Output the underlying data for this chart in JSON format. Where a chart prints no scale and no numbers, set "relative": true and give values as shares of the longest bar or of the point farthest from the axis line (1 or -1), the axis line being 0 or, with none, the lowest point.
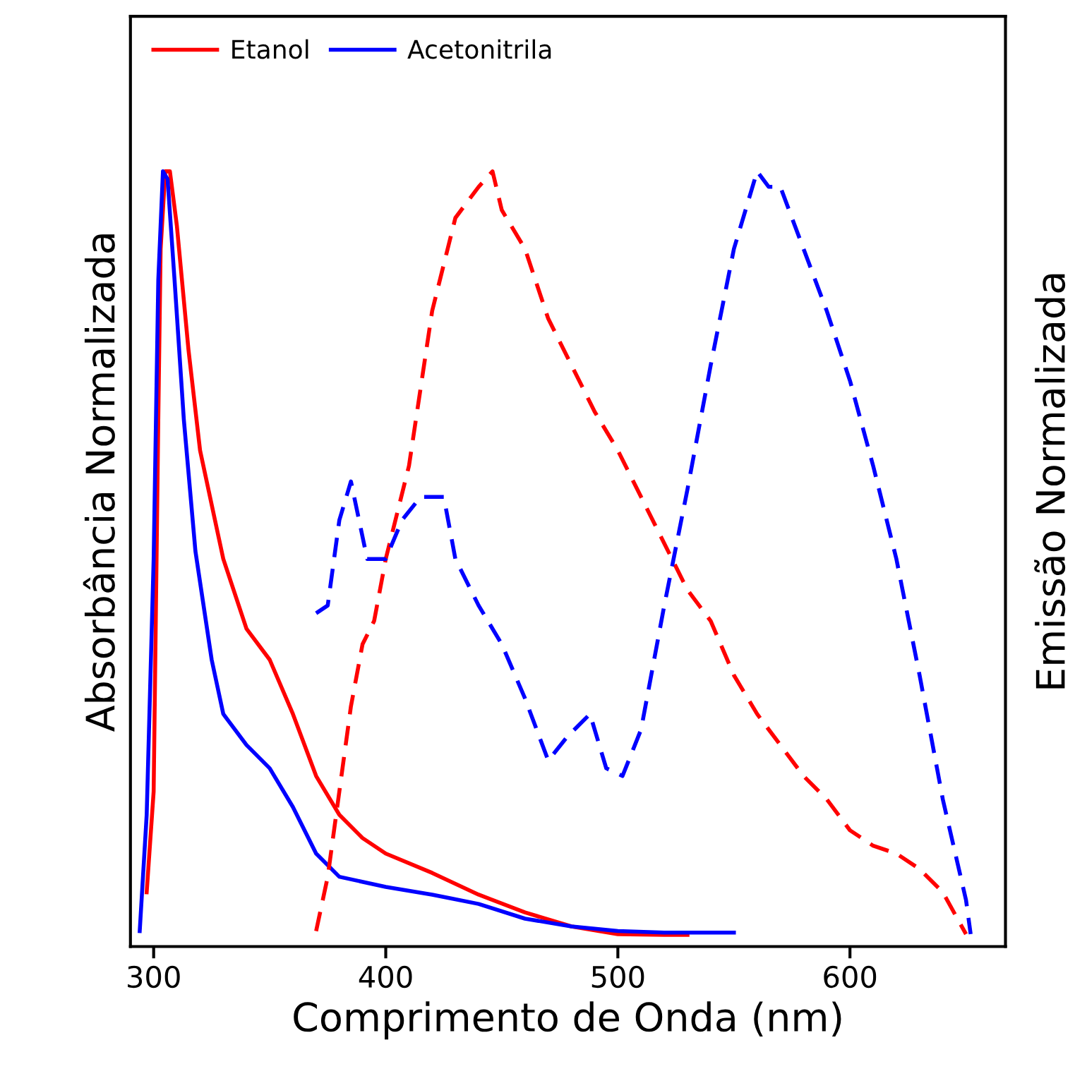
{
  "chart_data": {
    "type": "line",
    "relative": true,
    "xlabel": "Comprimento de Onda (nm)",
    "ylabel": "Absorbância Normalizada",
    "y2label": "Emissão Normalizada",
    "xlim": [
      290,
      667
    ],
    "xticks": [
      300,
      400,
      500,
      600
    ],
    "legend": "top left",
    "grid": false,
    "marker": "none",
    "series": [
      {
        "name": "Etanol",
        "color": "#ff0000",
        "line_style": "solid",
        "x": [
          297,
          300,
          302,
          303,
          305,
          307,
          310,
          315,
          320,
          330,
          340,
          350,
          360,
          370,
          380,
          390,
          400,
          420,
          440,
          460,
          480,
          500,
          520,
          530
        ],
        "values": [
          0.07,
          0.2,
          0.68,
          0.9,
          1.0,
          1.0,
          0.93,
          0.77,
          0.64,
          0.5,
          0.41,
          0.37,
          0.3,
          0.22,
          0.17,
          0.14,
          0.12,
          0.095,
          0.067,
          0.044,
          0.026,
          0.016,
          0.015,
          0.015
        ]
      },
      {
        "name": "Acetonitrila",
        "color": "#0000ff",
        "line_style": "solid",
        "x": [
          294,
          297,
          300,
          302,
          304,
          306,
          309,
          313,
          318,
          325,
          330,
          340,
          350,
          360,
          370,
          380,
          400,
          420,
          440,
          460,
          480,
          500,
          520,
          550
        ],
        "values": [
          0.02,
          0.17,
          0.5,
          0.86,
          1.0,
          0.99,
          0.86,
          0.68,
          0.51,
          0.37,
          0.3,
          0.26,
          0.23,
          0.18,
          0.12,
          0.09,
          0.077,
          0.067,
          0.055,
          0.036,
          0.026,
          0.02,
          0.018,
          0.018
        ]
      },
      {
        "color": "#ff0000",
        "line_style": "dashed",
        "x": [
          370,
          375,
          380,
          385,
          390,
          395,
          400,
          410,
          420,
          430,
          440,
          446,
          450,
          460,
          470,
          480,
          490,
          500,
          510,
          520,
          530,
          540,
          550,
          560,
          570,
          580,
          590,
          600,
          610,
          620,
          630,
          640,
          650
        ],
        "values": [
          0.02,
          0.09,
          0.2,
          0.31,
          0.39,
          0.42,
          0.5,
          0.62,
          0.82,
          0.94,
          0.98,
          1.0,
          0.95,
          0.9,
          0.81,
          0.75,
          0.69,
          0.64,
          0.58,
          0.52,
          0.46,
          0.42,
          0.35,
          0.3,
          0.26,
          0.22,
          0.19,
          0.15,
          0.13,
          0.12,
          0.1,
          0.07,
          0.016
        ]
      },
      {
        "color": "#0000ff",
        "line_style": "dashed",
        "x": [
          370,
          375,
          380,
          385,
          392,
          400,
          407,
          415,
          425,
          430,
          440,
          450,
          460,
          470,
          478,
          488,
          495,
          502,
          510,
          520,
          530,
          540,
          550,
          560,
          565,
          570,
          580,
          590,
          600,
          610,
          620,
          630,
          640,
          650,
          652
        ],
        "values": [
          0.43,
          0.44,
          0.55,
          0.6,
          0.5,
          0.5,
          0.55,
          0.58,
          0.58,
          0.5,
          0.44,
          0.39,
          0.32,
          0.24,
          0.27,
          0.3,
          0.23,
          0.22,
          0.28,
          0.44,
          0.59,
          0.75,
          0.9,
          1.0,
          0.98,
          0.98,
          0.9,
          0.82,
          0.73,
          0.62,
          0.5,
          0.35,
          0.19,
          0.06,
          0.016
        ]
      }
    ]
  }
}
